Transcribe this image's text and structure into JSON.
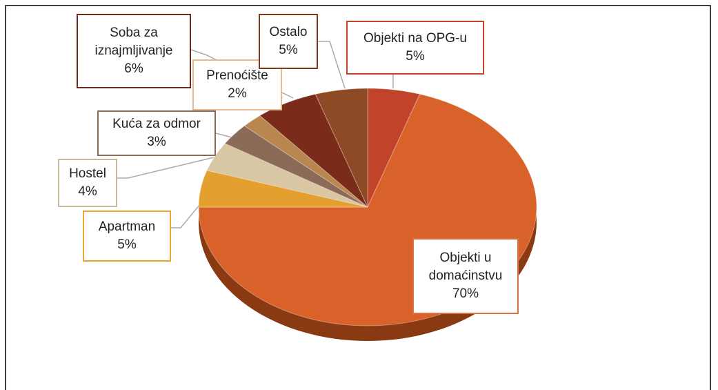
{
  "chart_data": {
    "type": "pie",
    "categories": [
      "Objekti na OPG-u",
      "Objekti u domaćinstvu",
      "Apartman",
      "Hostel",
      "Kuća za odmor",
      "Prenoćište",
      "Soba za iznajmljivanje",
      "Ostalo"
    ],
    "values": [
      5,
      70,
      5,
      4,
      3,
      2,
      6,
      5
    ],
    "value_labels": [
      "5%",
      "70%",
      "5%",
      "4%",
      "3%",
      "2%",
      "6%",
      "5%"
    ],
    "colors": [
      "#c0432a",
      "#d9622b",
      "#e4a02e",
      "#d9c6a2",
      "#8c6a58",
      "#b8864e",
      "#7a2b1a",
      "#8e4a24"
    ]
  }
}
